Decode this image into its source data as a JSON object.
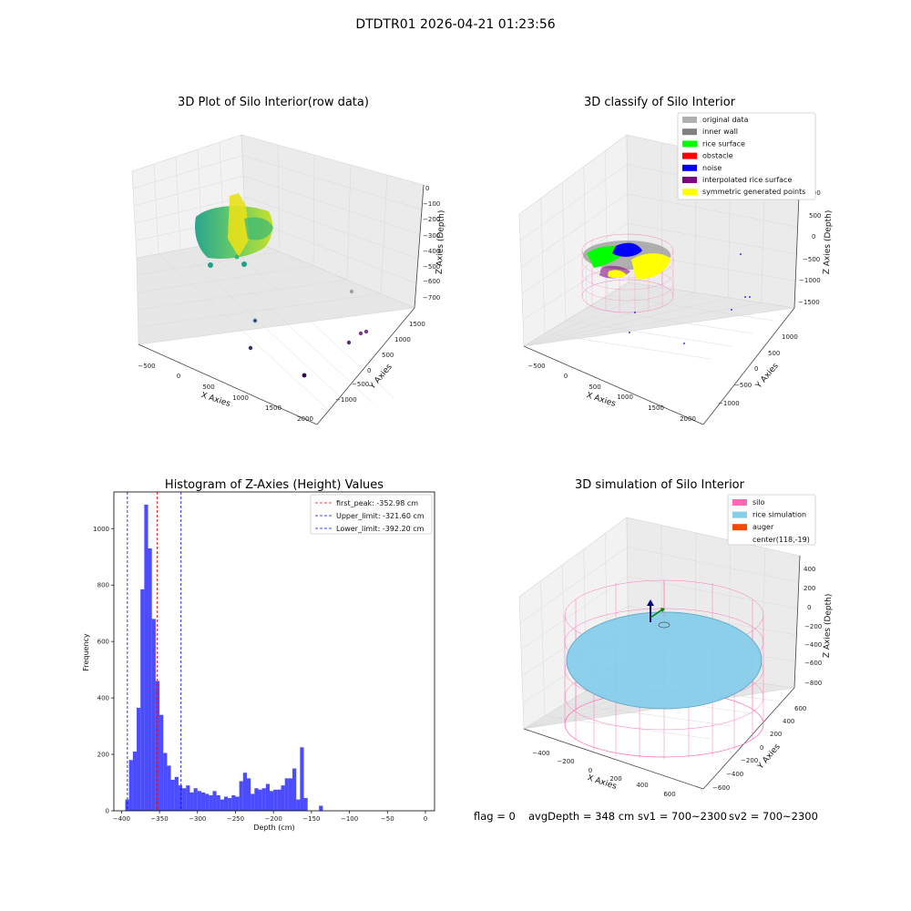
{
  "figure": {
    "suptitle": "DTDTR01 2026-04-21 01:23:56",
    "footer": {
      "flag": "flag = 0",
      "avg": "avgDepth = 348 cm",
      "sv1": "sv1 = 700~2300",
      "sv2": "sv2 = 700~2300"
    }
  },
  "panels": {
    "raw": {
      "title": "3D Plot of Silo Interior(row data)",
      "xlabel": "X Axies",
      "ylabel": "Y Axies",
      "zlabel": "Z Axies (Depth)",
      "xticks": [
        "−500",
        "0",
        "500",
        "1000",
        "1500",
        "2000"
      ],
      "yticks": [
        "1500",
        "1000",
        "500",
        "0",
        "−500",
        "−1000"
      ],
      "zticks": [
        "0",
        "−100",
        "−200",
        "−300",
        "−400",
        "−500",
        "−600",
        "−700"
      ]
    },
    "classify": {
      "title": "3D classify of Silo Interior",
      "xlabel": "X Axies",
      "ylabel": "Y Axies",
      "zlabel": "Z Axies (Depth)",
      "xticks": [
        "−500",
        "0",
        "500",
        "1000",
        "1500",
        "2000"
      ],
      "yticks": [
        "1000",
        "500",
        "0",
        "−500",
        "−1000"
      ],
      "zticks": [
        "1000",
        "500",
        "0",
        "−500",
        "−1000",
        "−1500"
      ],
      "legend": [
        {
          "label": "original data",
          "color": "#b0b0b0"
        },
        {
          "label": "inner wall",
          "color": "#808080"
        },
        {
          "label": "rice surface",
          "color": "#00ff00"
        },
        {
          "label": "obstacle",
          "color": "#ff0000"
        },
        {
          "label": "noise",
          "color": "#0000ff"
        },
        {
          "label": "interpolated rice surface",
          "color": "#800080"
        },
        {
          "label": "symmetric generated points",
          "color": "#ffff00"
        }
      ]
    },
    "simulation": {
      "title": "3D simulation of Silo Interior",
      "xlabel": "X Axies",
      "ylabel": "Y Axies",
      "zlabel": "Z Axies (Depth)",
      "xticks": [
        "−400",
        "−200",
        "0",
        "200",
        "400",
        "600"
      ],
      "yticks": [
        "600",
        "400",
        "200",
        "0",
        "−200",
        "−400",
        "−600"
      ],
      "zticks": [
        "400",
        "200",
        "0",
        "−200",
        "−400",
        "−600",
        "−800"
      ],
      "legend": [
        {
          "label": "silo",
          "color": "#ff69b4",
          "swatch": true
        },
        {
          "label": "rice simulation",
          "color": "#87ceeb",
          "swatch": true
        },
        {
          "label": "auger",
          "color": "#ff4500",
          "swatch": true
        },
        {
          "label": "center(118,-19)",
          "color": "#ffffff",
          "swatch": false
        }
      ]
    }
  },
  "chart_data": [
    {
      "type": "bar",
      "title": "Histogram of Z-Axies (Height) Values",
      "xlabel": "Depth (cm)",
      "ylabel": "Frequency",
      "xlim": [
        -410,
        12
      ],
      "ylim": [
        0,
        1130
      ],
      "xticks": [
        -400,
        -350,
        -300,
        -250,
        -200,
        -150,
        -100,
        -50,
        0
      ],
      "yticks": [
        0,
        200,
        400,
        600,
        800,
        1000
      ],
      "bar_color": "#0000ff",
      "bin_start": -395,
      "bin_width": 5,
      "values": [
        40,
        180,
        210,
        365,
        785,
        1085,
        930,
        680,
        460,
        340,
        205,
        160,
        110,
        120,
        90,
        80,
        90,
        65,
        80,
        70,
        65,
        60,
        55,
        70,
        55,
        40,
        50,
        45,
        55,
        50,
        105,
        135,
        115,
        60,
        80,
        75,
        80,
        95,
        70,
        75,
        75,
        90,
        115,
        115,
        150,
        40,
        225,
        45,
        0,
        0,
        0,
        18
      ],
      "vlines": [
        {
          "label": "first_peak: -352.98 cm",
          "x": -352.98,
          "color": "#ff0000"
        },
        {
          "label": "Upper_limit: -321.60 cm",
          "x": -321.6,
          "color": "#0000ff"
        },
        {
          "label": "Lower_limit: -392.20 cm",
          "x": -392.2,
          "color": "#0000ff"
        }
      ]
    }
  ]
}
